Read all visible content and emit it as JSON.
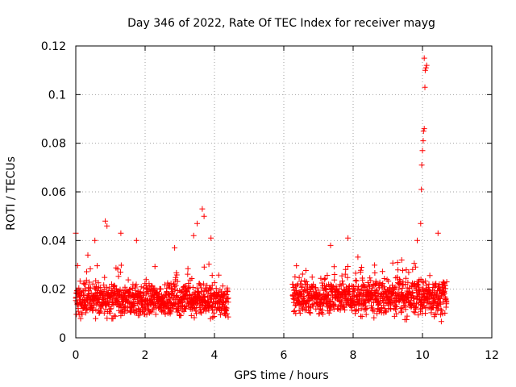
{
  "chart_data": {
    "type": "scatter",
    "title": "Day 346 of 2022, Rate Of TEC Index for receiver mayg",
    "xlabel": "GPS time / hours",
    "ylabel": "ROTI / TECUs",
    "xlim": [
      0,
      12
    ],
    "ylim": [
      0,
      0.12
    ],
    "x_ticks": [
      0,
      2,
      4,
      6,
      8,
      10,
      12
    ],
    "y_ticks": [
      0,
      0.02,
      0.04,
      0.06,
      0.08,
      0.1,
      0.12
    ],
    "x_tick_labels": [
      "0",
      "2",
      "4",
      "6",
      "8",
      "10",
      "12"
    ],
    "y_tick_labels": [
      "0",
      "0.02",
      "0.04",
      "0.06",
      "0.08",
      "0.1",
      "0.12"
    ],
    "grid": true,
    "marker": "+",
    "marker_color": "#ff0000",
    "series": [
      {
        "name": "ROTI",
        "segments": [
          {
            "x_start": 0.0,
            "x_end": 4.4,
            "y_typical_low": 0.006,
            "y_typical_high": 0.025
          },
          {
            "x_start": 6.25,
            "x_end": 10.7,
            "y_typical_low": 0.006,
            "y_typical_high": 0.027
          }
        ],
        "notable_points": [
          {
            "x": 0.0,
            "y": 0.043
          },
          {
            "x": 0.35,
            "y": 0.034
          },
          {
            "x": 0.55,
            "y": 0.04
          },
          {
            "x": 0.85,
            "y": 0.048
          },
          {
            "x": 0.9,
            "y": 0.046
          },
          {
            "x": 1.3,
            "y": 0.043
          },
          {
            "x": 1.75,
            "y": 0.04
          },
          {
            "x": 2.85,
            "y": 0.037
          },
          {
            "x": 3.4,
            "y": 0.042
          },
          {
            "x": 3.5,
            "y": 0.047
          },
          {
            "x": 3.65,
            "y": 0.053
          },
          {
            "x": 3.7,
            "y": 0.05
          },
          {
            "x": 3.9,
            "y": 0.041
          },
          {
            "x": 7.35,
            "y": 0.038
          },
          {
            "x": 7.85,
            "y": 0.041
          },
          {
            "x": 9.4,
            "y": 0.032
          },
          {
            "x": 9.85,
            "y": 0.04
          },
          {
            "x": 9.95,
            "y": 0.047
          },
          {
            "x": 9.97,
            "y": 0.061
          },
          {
            "x": 9.98,
            "y": 0.071
          },
          {
            "x": 10.0,
            "y": 0.077
          },
          {
            "x": 10.02,
            "y": 0.081
          },
          {
            "x": 10.03,
            "y": 0.085
          },
          {
            "x": 10.05,
            "y": 0.086
          },
          {
            "x": 10.07,
            "y": 0.103
          },
          {
            "x": 10.08,
            "y": 0.11
          },
          {
            "x": 10.1,
            "y": 0.111
          },
          {
            "x": 10.12,
            "y": 0.112
          },
          {
            "x": 10.05,
            "y": 0.115
          },
          {
            "x": 10.45,
            "y": 0.043
          }
        ]
      }
    ]
  }
}
